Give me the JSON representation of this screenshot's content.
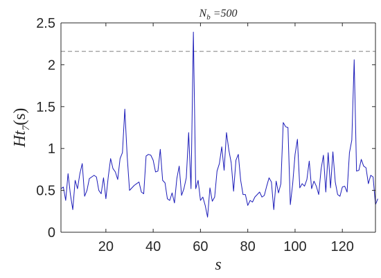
{
  "chart_data": {
    "type": "line",
    "title": "N",
    "title_sub": "b",
    "title_value": " =500",
    "xlabel": "s",
    "ylabel_main": "Ht",
    "ylabel_sub": "7",
    "ylabel_suffix": "(s)",
    "xlim": [
      1,
      134
    ],
    "ylim": [
      0,
      2.5
    ],
    "xticks": [
      20,
      40,
      60,
      80,
      100,
      120
    ],
    "yticks": [
      0,
      0.5,
      1,
      1.5,
      2,
      2.5
    ],
    "ytick_labels": [
      "0",
      "0.5",
      "1",
      "1.5",
      "2",
      "2.5"
    ],
    "grid": false,
    "colors": {
      "series": "#1a1ab8",
      "threshold": "#7f7f7f",
      "axis": "#262626"
    },
    "threshold": {
      "value": 2.16,
      "style": "dashed"
    },
    "series": [
      {
        "x_start": 1,
        "values": [
          0.52,
          0.54,
          0.38,
          0.7,
          0.45,
          0.27,
          0.62,
          0.52,
          0.7,
          0.82,
          0.43,
          0.5,
          0.64,
          0.66,
          0.68,
          0.66,
          0.5,
          0.46,
          0.65,
          0.4,
          0.66,
          0.88,
          0.76,
          0.72,
          0.63,
          0.88,
          0.95,
          1.47,
          0.91,
          0.5,
          0.53,
          0.56,
          0.58,
          0.6,
          0.48,
          0.46,
          0.91,
          0.93,
          0.92,
          0.86,
          0.72,
          0.73,
          0.99,
          0.62,
          0.59,
          0.4,
          0.38,
          0.47,
          0.35,
          0.64,
          0.79,
          0.44,
          0.52,
          0.65,
          1.19,
          0.52,
          2.39,
          0.52,
          0.62,
          0.38,
          0.42,
          0.32,
          0.18,
          0.53,
          0.37,
          0.42,
          0.73,
          0.82,
          1.02,
          0.74,
          1.19,
          0.98,
          0.83,
          0.49,
          0.86,
          0.93,
          0.62,
          0.45,
          0.45,
          0.32,
          0.38,
          0.36,
          0.42,
          0.45,
          0.48,
          0.42,
          0.44,
          0.55,
          0.65,
          0.6,
          0.27,
          0.61,
          0.47,
          0.58,
          1.31,
          1.26,
          1.25,
          0.33,
          0.58,
          0.93,
          1.11,
          0.53,
          0.58,
          0.55,
          0.63,
          0.85,
          0.52,
          0.61,
          0.55,
          0.45,
          0.75,
          0.92,
          0.48,
          0.95,
          0.53,
          0.96,
          0.6,
          0.45,
          0.43,
          0.54,
          0.55,
          0.48,
          0.95,
          1.1,
          2.06,
          0.73,
          0.74,
          0.87,
          0.79,
          0.77,
          0.58,
          0.68,
          0.66,
          0.33,
          0.4
        ]
      }
    ]
  }
}
